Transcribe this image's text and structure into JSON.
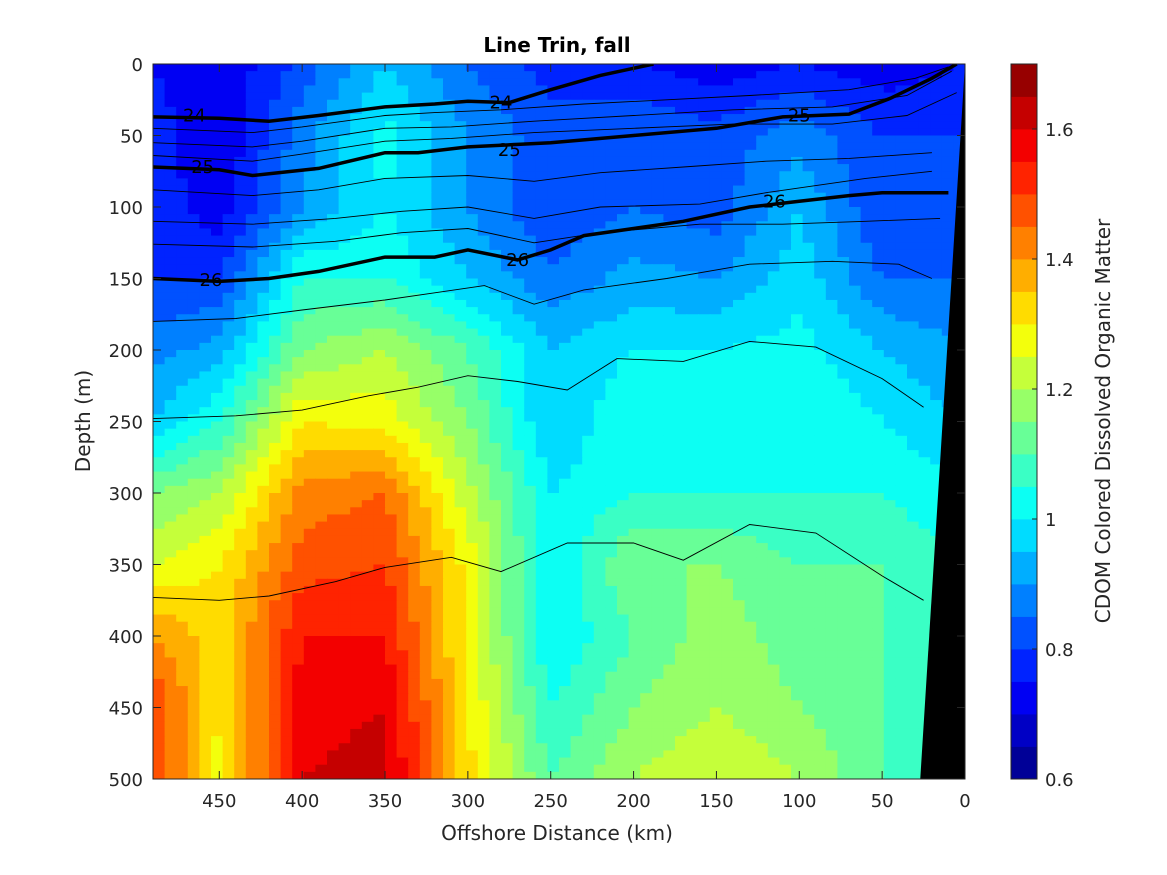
{
  "chart_data": {
    "type": "heatmap",
    "title": "Line Trin, fall",
    "xlabel": "Offshore Distance (km)",
    "ylabel": "Depth (m)",
    "colorbar_label": "CDOM Colored Dissolved Organic Matter",
    "xlim": [
      490,
      0
    ],
    "ylim": [
      0,
      500
    ],
    "x_reversed": true,
    "y_reversed": true,
    "clim": [
      0.6,
      1.7
    ],
    "colormap": "jet",
    "x_ticks": [
      450,
      400,
      350,
      300,
      250,
      200,
      150,
      100,
      50,
      0
    ],
    "x_tick_labels": [
      "450",
      "400",
      "350",
      "300",
      "250",
      "200",
      "150",
      "100",
      "50",
      "0"
    ],
    "y_ticks": [
      0,
      50,
      100,
      150,
      200,
      250,
      300,
      350,
      400,
      450,
      500
    ],
    "y_tick_labels": [
      "0",
      "50",
      "100",
      "150",
      "200",
      "250",
      "300",
      "350",
      "400",
      "450",
      "500"
    ],
    "colorbar_ticks": [
      0.6,
      0.8,
      1.0,
      1.2,
      1.4,
      1.6
    ],
    "colorbar_tick_labels": [
      "0.6",
      "0.8",
      "1",
      "1.2",
      "1.4",
      "1.6"
    ],
    "cdom_grid": {
      "x": [
        490,
        450,
        400,
        350,
        300,
        250,
        200,
        150,
        100,
        50,
        0
      ],
      "depth": [
        0,
        50,
        100,
        150,
        200,
        250,
        300,
        350,
        400,
        450,
        500
      ],
      "values": [
        [
          0.75,
          0.7,
          0.82,
          0.95,
          0.85,
          0.78,
          0.75,
          0.72,
          0.75,
          0.72,
          0.75
        ],
        [
          0.78,
          0.7,
          0.88,
          1.02,
          0.9,
          0.82,
          0.85,
          0.82,
          0.88,
          0.8,
          0.8
        ],
        [
          0.78,
          0.72,
          0.9,
          1.0,
          0.9,
          0.8,
          0.85,
          0.82,
          0.95,
          0.8,
          0.8
        ],
        [
          0.8,
          0.8,
          1.05,
          1.05,
          0.95,
          0.86,
          0.92,
          0.9,
          0.98,
          0.85,
          0.85
        ],
        [
          0.88,
          0.92,
          1.15,
          1.2,
          1.1,
          0.95,
          1.0,
          1.0,
          1.02,
          0.95,
          0.9
        ],
        [
          0.95,
          1.05,
          1.3,
          1.28,
          1.15,
          0.95,
          1.05,
          1.0,
          1.05,
          1.0,
          0.95
        ],
        [
          1.15,
          1.2,
          1.42,
          1.45,
          1.22,
          1.0,
          1.05,
          1.05,
          1.05,
          1.05,
          1.0
        ],
        [
          1.25,
          1.3,
          1.48,
          1.5,
          1.28,
          1.0,
          1.15,
          1.15,
          1.1,
          1.1,
          1.05
        ],
        [
          1.4,
          1.32,
          1.55,
          1.55,
          1.28,
          1.0,
          1.1,
          1.18,
          1.12,
          1.1,
          1.05
        ],
        [
          1.5,
          1.3,
          1.58,
          1.6,
          1.3,
          1.05,
          1.15,
          1.2,
          1.15,
          1.1,
          1.05
        ],
        [
          1.5,
          1.28,
          1.6,
          1.62,
          1.32,
          1.1,
          1.2,
          1.25,
          1.2,
          1.1,
          1.05
        ]
      ]
    },
    "bathymetry": [
      {
        "x": 27,
        "depth": 500
      },
      {
        "x": 0,
        "depth": 0
      }
    ],
    "isopycnals_labeled": [
      {
        "label": "24",
        "points": [
          [
            490,
            37
          ],
          [
            450,
            38
          ],
          [
            420,
            40
          ],
          [
            390,
            36
          ],
          [
            350,
            30
          ],
          [
            320,
            28
          ],
          [
            300,
            26
          ],
          [
            275,
            27
          ],
          [
            250,
            18
          ],
          [
            220,
            8
          ],
          [
            188,
            0
          ]
        ],
        "label_at": [
          [
            465,
            36
          ],
          [
            280,
            27
          ]
        ]
      },
      {
        "label": "25",
        "points": [
          [
            490,
            72
          ],
          [
            450,
            74
          ],
          [
            430,
            78
          ],
          [
            390,
            73
          ],
          [
            350,
            62
          ],
          [
            330,
            62
          ],
          [
            300,
            58
          ],
          [
            250,
            55
          ],
          [
            200,
            50
          ],
          [
            150,
            45
          ],
          [
            110,
            37
          ],
          [
            70,
            35
          ],
          [
            45,
            24
          ],
          [
            20,
            10
          ],
          [
            5,
            0
          ]
        ],
        "label_at": [
          [
            460,
            72
          ],
          [
            275,
            60
          ],
          [
            100,
            36
          ]
        ]
      },
      {
        "label": "26",
        "points": [
          [
            490,
            150
          ],
          [
            450,
            152
          ],
          [
            420,
            150
          ],
          [
            390,
            145
          ],
          [
            350,
            135
          ],
          [
            320,
            135
          ],
          [
            300,
            130
          ],
          [
            270,
            137
          ],
          [
            250,
            130
          ],
          [
            230,
            120
          ],
          [
            200,
            115
          ],
          [
            170,
            110
          ],
          [
            130,
            100
          ],
          [
            100,
            96
          ],
          [
            70,
            92
          ],
          [
            50,
            90
          ],
          [
            10,
            90
          ]
        ],
        "label_at": [
          [
            455,
            151
          ],
          [
            270,
            137
          ],
          [
            115,
            96
          ]
        ]
      }
    ],
    "isopycnals_thin": [
      [
        [
          490,
          45
        ],
        [
          430,
          48
        ],
        [
          400,
          44
        ],
        [
          350,
          36
        ],
        [
          320,
          34
        ],
        [
          280,
          32
        ],
        [
          230,
          28
        ],
        [
          180,
          25
        ],
        [
          130,
          22
        ],
        [
          70,
          18
        ],
        [
          30,
          10
        ],
        [
          10,
          2
        ]
      ],
      [
        [
          490,
          55
        ],
        [
          430,
          58
        ],
        [
          400,
          54
        ],
        [
          350,
          45
        ],
        [
          310,
          44
        ],
        [
          260,
          40
        ],
        [
          200,
          36
        ],
        [
          140,
          32
        ],
        [
          80,
          30
        ],
        [
          35,
          22
        ],
        [
          8,
          5
        ]
      ],
      [
        [
          490,
          64
        ],
        [
          430,
          68
        ],
        [
          400,
          63
        ],
        [
          350,
          54
        ],
        [
          310,
          52
        ],
        [
          260,
          48
        ],
        [
          200,
          45
        ],
        [
          140,
          42
        ],
        [
          80,
          42
        ],
        [
          35,
          36
        ],
        [
          5,
          20
        ]
      ],
      [
        [
          490,
          88
        ],
        [
          430,
          92
        ],
        [
          390,
          88
        ],
        [
          350,
          80
        ],
        [
          300,
          78
        ],
        [
          260,
          82
        ],
        [
          220,
          76
        ],
        [
          170,
          72
        ],
        [
          120,
          68
        ],
        [
          70,
          66
        ],
        [
          20,
          62
        ]
      ],
      [
        [
          490,
          110
        ],
        [
          430,
          112
        ],
        [
          380,
          108
        ],
        [
          340,
          103
        ],
        [
          300,
          100
        ],
        [
          260,
          108
        ],
        [
          220,
          100
        ],
        [
          160,
          98
        ],
        [
          120,
          90
        ],
        [
          60,
          80
        ],
        [
          20,
          75
        ]
      ],
      [
        [
          490,
          126
        ],
        [
          430,
          128
        ],
        [
          380,
          124
        ],
        [
          340,
          118
        ],
        [
          300,
          115
        ],
        [
          260,
          125
        ],
        [
          220,
          118
        ],
        [
          160,
          112
        ],
        [
          110,
          112
        ],
        [
          60,
          110
        ],
        [
          15,
          108
        ]
      ],
      [
        [
          490,
          180
        ],
        [
          440,
          178
        ],
        [
          400,
          172
        ],
        [
          350,
          165
        ],
        [
          320,
          160
        ],
        [
          290,
          155
        ],
        [
          260,
          168
        ],
        [
          230,
          158
        ],
        [
          180,
          150
        ],
        [
          130,
          140
        ],
        [
          80,
          138
        ],
        [
          40,
          140
        ],
        [
          20,
          150
        ]
      ],
      [
        [
          490,
          248
        ],
        [
          440,
          246
        ],
        [
          400,
          242
        ],
        [
          360,
          232
        ],
        [
          330,
          226
        ],
        [
          300,
          218
        ],
        [
          270,
          222
        ],
        [
          240,
          228
        ],
        [
          210,
          206
        ],
        [
          170,
          208
        ],
        [
          130,
          194
        ],
        [
          90,
          198
        ],
        [
          50,
          220
        ],
        [
          25,
          240
        ]
      ],
      [
        [
          490,
          373
        ],
        [
          450,
          375
        ],
        [
          420,
          372
        ],
        [
          380,
          362
        ],
        [
          350,
          352
        ],
        [
          310,
          345
        ],
        [
          280,
          355
        ],
        [
          240,
          335
        ],
        [
          200,
          335
        ],
        [
          170,
          347
        ],
        [
          130,
          322
        ],
        [
          90,
          328
        ],
        [
          50,
          358
        ],
        [
          25,
          375
        ]
      ]
    ]
  }
}
